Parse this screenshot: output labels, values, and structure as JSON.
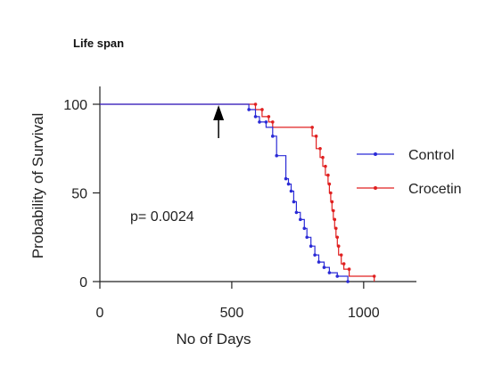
{
  "chart_data": {
    "type": "line",
    "title": "Life span",
    "xlabel": "No of Days",
    "ylabel": "Probability of Survival",
    "xlim": [
      0,
      1200
    ],
    "ylim": [
      0,
      100
    ],
    "x_ticks": [
      0,
      500,
      1000
    ],
    "y_ticks": [
      0,
      50,
      100
    ],
    "grid": false,
    "legend_position": "right",
    "annotation": {
      "text": "p= 0.0024"
    },
    "arrow_marker_x": 450,
    "series": [
      {
        "name": "Control",
        "color": "#2b2bd6",
        "points": [
          [
            0,
            100
          ],
          [
            565,
            100
          ],
          [
            565,
            97
          ],
          [
            590,
            97
          ],
          [
            590,
            93
          ],
          [
            605,
            93
          ],
          [
            605,
            90
          ],
          [
            630,
            90
          ],
          [
            630,
            87
          ],
          [
            655,
            87
          ],
          [
            655,
            82
          ],
          [
            670,
            82
          ],
          [
            670,
            71
          ],
          [
            705,
            71
          ],
          [
            705,
            58
          ],
          [
            715,
            58
          ],
          [
            715,
            55
          ],
          [
            725,
            55
          ],
          [
            725,
            51
          ],
          [
            735,
            51
          ],
          [
            735,
            45
          ],
          [
            745,
            45
          ],
          [
            745,
            39
          ],
          [
            760,
            39
          ],
          [
            760,
            35
          ],
          [
            775,
            35
          ],
          [
            775,
            30
          ],
          [
            785,
            30
          ],
          [
            785,
            25
          ],
          [
            800,
            25
          ],
          [
            800,
            20
          ],
          [
            815,
            20
          ],
          [
            815,
            15
          ],
          [
            830,
            15
          ],
          [
            830,
            11
          ],
          [
            850,
            11
          ],
          [
            850,
            8
          ],
          [
            870,
            8
          ],
          [
            870,
            5
          ],
          [
            900,
            5
          ],
          [
            900,
            3
          ],
          [
            940,
            3
          ],
          [
            940,
            0
          ]
        ],
        "markers": [
          [
            565,
            97
          ],
          [
            590,
            93
          ],
          [
            605,
            90
          ],
          [
            630,
            90
          ],
          [
            655,
            82
          ],
          [
            670,
            71
          ],
          [
            705,
            58
          ],
          [
            715,
            55
          ],
          [
            725,
            51
          ],
          [
            735,
            45
          ],
          [
            745,
            39
          ],
          [
            760,
            35
          ],
          [
            775,
            30
          ],
          [
            785,
            25
          ],
          [
            800,
            20
          ],
          [
            815,
            15
          ],
          [
            830,
            11
          ],
          [
            850,
            8
          ],
          [
            870,
            5
          ],
          [
            900,
            3
          ],
          [
            940,
            0
          ]
        ]
      },
      {
        "name": "Crocetin",
        "color": "#e02020",
        "points": [
          [
            0,
            100
          ],
          [
            590,
            100
          ],
          [
            590,
            97
          ],
          [
            615,
            97
          ],
          [
            615,
            93
          ],
          [
            640,
            93
          ],
          [
            640,
            90
          ],
          [
            655,
            90
          ],
          [
            655,
            87
          ],
          [
            805,
            87
          ],
          [
            805,
            82
          ],
          [
            820,
            82
          ],
          [
            820,
            75
          ],
          [
            835,
            75
          ],
          [
            835,
            70
          ],
          [
            845,
            70
          ],
          [
            845,
            65
          ],
          [
            855,
            65
          ],
          [
            855,
            60
          ],
          [
            865,
            60
          ],
          [
            865,
            55
          ],
          [
            870,
            55
          ],
          [
            870,
            50
          ],
          [
            875,
            50
          ],
          [
            875,
            45
          ],
          [
            880,
            45
          ],
          [
            880,
            40
          ],
          [
            885,
            40
          ],
          [
            885,
            35
          ],
          [
            890,
            35
          ],
          [
            890,
            30
          ],
          [
            895,
            30
          ],
          [
            895,
            25
          ],
          [
            900,
            25
          ],
          [
            900,
            20
          ],
          [
            905,
            20
          ],
          [
            905,
            15
          ],
          [
            915,
            15
          ],
          [
            915,
            10
          ],
          [
            925,
            10
          ],
          [
            925,
            7
          ],
          [
            945,
            7
          ],
          [
            945,
            3
          ],
          [
            1040,
            3
          ],
          [
            1040,
            0
          ]
        ],
        "markers": [
          [
            590,
            100
          ],
          [
            615,
            97
          ],
          [
            640,
            93
          ],
          [
            655,
            90
          ],
          [
            805,
            87
          ],
          [
            820,
            82
          ],
          [
            835,
            75
          ],
          [
            845,
            70
          ],
          [
            855,
            65
          ],
          [
            865,
            60
          ],
          [
            870,
            55
          ],
          [
            875,
            50
          ],
          [
            880,
            45
          ],
          [
            885,
            40
          ],
          [
            890,
            35
          ],
          [
            895,
            30
          ],
          [
            900,
            25
          ],
          [
            905,
            20
          ],
          [
            915,
            15
          ],
          [
            925,
            10
          ],
          [
            945,
            7
          ],
          [
            1040,
            3
          ]
        ]
      }
    ]
  }
}
